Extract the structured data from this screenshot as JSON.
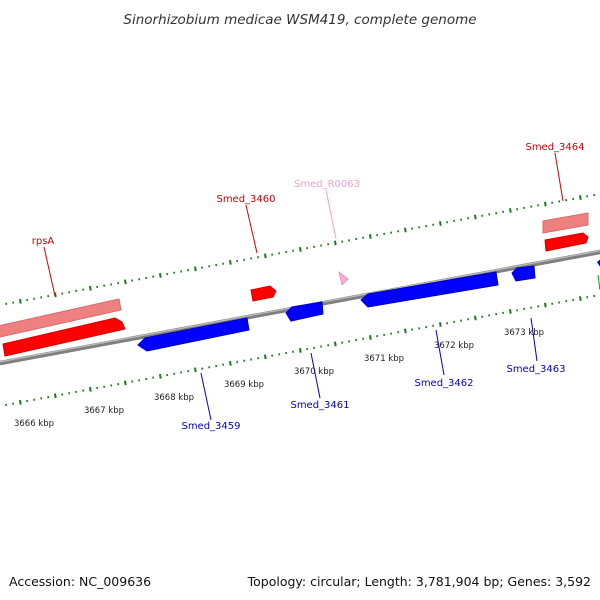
{
  "title": "Sinorhizobium medicae WSM419, complete genome",
  "footer": {
    "accession": "Accession: NC_009636",
    "stats": "Topology: circular; Length: 3,781,904 bp; Genes: 3,592"
  },
  "colors": {
    "forward_gene": "#ff0000",
    "forward_gene_light": "#f08080",
    "reverse_gene": "#0000ff",
    "rna_gene": "#ffaad4",
    "tick": "#1a7a1a",
    "backbone": "#808080"
  },
  "scale": {
    "unit": "kbp",
    "ticks": [
      {
        "kbp": 3666,
        "label": "3666 kbp"
      },
      {
        "kbp": 3667,
        "label": "3667 kbp"
      },
      {
        "kbp": 3668,
        "label": "3668 kbp"
      },
      {
        "kbp": 3669,
        "label": "3669 kbp"
      },
      {
        "kbp": 3670,
        "label": "3670 kbp"
      },
      {
        "kbp": 3671,
        "label": "3671 kbp"
      },
      {
        "kbp": 3672,
        "label": "3672 kbp"
      },
      {
        "kbp": 3673,
        "label": "3673 kbp"
      }
    ]
  },
  "genes": [
    {
      "name": "rpsA",
      "strand": "+",
      "type": "cds",
      "labeled": true
    },
    {
      "name": "Smed_3460",
      "strand": "+",
      "type": "cds",
      "labeled": true
    },
    {
      "name": "Smed_R0063",
      "strand": "+",
      "type": "rna",
      "labeled": true
    },
    {
      "name": "Smed_3464",
      "strand": "+",
      "type": "cds",
      "labeled": true
    },
    {
      "name": "Smed_3459",
      "strand": "-",
      "type": "cds",
      "labeled": true
    },
    {
      "name": "Smed_3461",
      "strand": "-",
      "type": "cds",
      "labeled": true
    },
    {
      "name": "Smed_3462",
      "strand": "-",
      "type": "cds",
      "labeled": true
    },
    {
      "name": "Smed_3463",
      "strand": "-",
      "type": "cds",
      "labeled": true
    }
  ]
}
